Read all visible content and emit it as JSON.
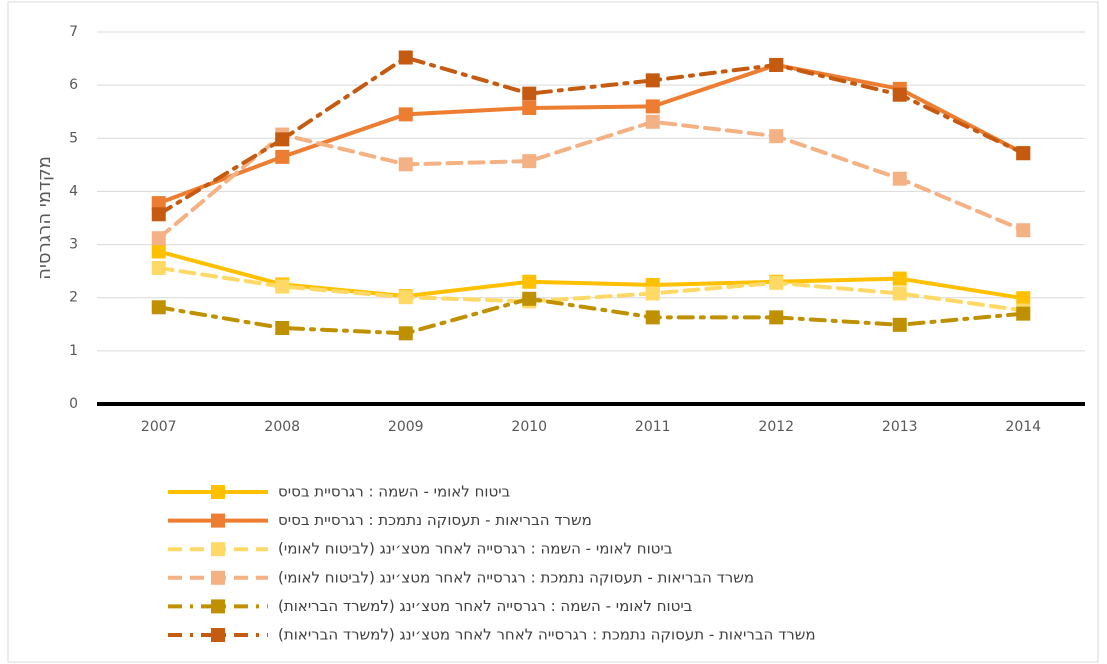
{
  "chart_data": {
    "type": "line",
    "y_label": "מקדמי הרגרסיה",
    "categories": [
      "2007",
      "2008",
      "2009",
      "2010",
      "2011",
      "2012",
      "2013",
      "2014"
    ],
    "ylim": [
      0,
      7
    ],
    "yticks": [
      0,
      1,
      2,
      3,
      4,
      5,
      6,
      7
    ],
    "grid": true,
    "legend": "bottom",
    "series": [
      {
        "name": "ביטוח לאומי - השמה : רגרסיית בסיס",
        "color": "#FFC000",
        "line_style": "solid",
        "values": [
          2.87,
          2.25,
          2.03,
          2.3,
          2.24,
          2.3,
          2.36,
          1.99
        ]
      },
      {
        "name": "משרד הבריאות - תעסוקה נתמכת : רגרסיית בסיס",
        "color": "#ED7D31",
        "line_style": "solid",
        "values": [
          3.78,
          4.65,
          5.45,
          5.57,
          5.6,
          6.38,
          5.93,
          4.72
        ]
      },
      {
        "name": "ביטוח לאומי - השמה : רגרסייה לאחר מטצ׳ינג (לביטוח לאומי)",
        "color": "#FFD966",
        "line_style": "dashed",
        "values": [
          2.56,
          2.21,
          2.01,
          1.93,
          2.08,
          2.28,
          2.08,
          1.76
        ]
      },
      {
        "name": "משרד הבריאות - תעסוקה נתמכת : רגרסייה לאחר מטצ׳ינג (לביטוח לאומי)",
        "color": "#F4B183",
        "line_style": "dashed",
        "values": [
          3.12,
          5.07,
          4.51,
          4.57,
          5.31,
          5.04,
          4.24,
          3.27
        ]
      },
      {
        "name": "ביטוח לאומי - השמה : רגרסייה לאחר מטצ׳ינג (למשרד הבריאות)",
        "color": "#BF9000",
        "line_style": "dashdot",
        "values": [
          1.82,
          1.43,
          1.33,
          1.98,
          1.63,
          1.63,
          1.49,
          1.7
        ]
      },
      {
        "name": "משרד הבריאות - תעסוקה נתמכת : רגרסייה לאחר לאחר מטצ׳ינג (למשרד הבריאות)",
        "color": "#C55A11",
        "line_style": "dashdot",
        "values": [
          3.57,
          4.98,
          6.52,
          5.84,
          6.09,
          6.38,
          5.82,
          4.72
        ]
      }
    ]
  }
}
